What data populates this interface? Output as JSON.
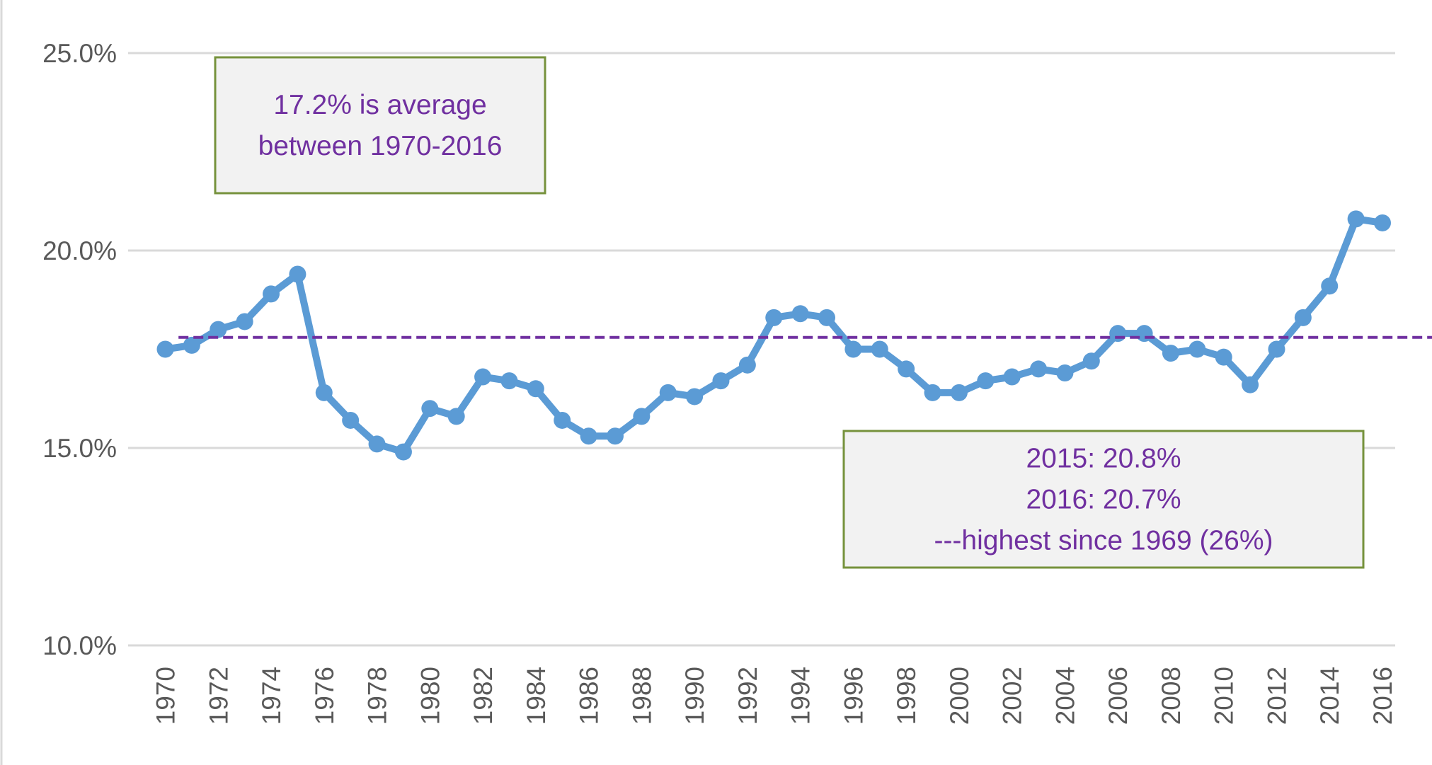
{
  "chart_data": {
    "type": "line",
    "x": [
      1970,
      1971,
      1972,
      1973,
      1974,
      1975,
      1976,
      1977,
      1978,
      1979,
      1980,
      1981,
      1982,
      1983,
      1984,
      1985,
      1986,
      1987,
      1988,
      1989,
      1990,
      1991,
      1992,
      1993,
      1994,
      1995,
      1996,
      1997,
      1998,
      1999,
      2000,
      2001,
      2002,
      2003,
      2004,
      2005,
      2006,
      2007,
      2008,
      2009,
      2010,
      2011,
      2012,
      2013,
      2014,
      2015,
      2016
    ],
    "series": [
      {
        "color": "#5b9bd5",
        "values": [
          17.5,
          17.6,
          18.0,
          18.2,
          18.9,
          19.4,
          16.4,
          15.7,
          15.1,
          14.9,
          16.0,
          15.8,
          16.8,
          16.7,
          16.5,
          15.7,
          15.3,
          15.3,
          15.8,
          16.4,
          16.3,
          16.7,
          17.1,
          18.3,
          18.4,
          18.3,
          17.5,
          17.5,
          17.0,
          16.4,
          16.4,
          16.7,
          16.8,
          17.0,
          16.9,
          17.2,
          17.9,
          17.9,
          17.4,
          17.5,
          17.3,
          16.6,
          17.5,
          18.3,
          19.1,
          20.8,
          20.7
        ]
      }
    ],
    "xlim": [
      1970,
      2016
    ],
    "xticks": [
      1970,
      1972,
      1974,
      1976,
      1978,
      1980,
      1982,
      1984,
      1986,
      1988,
      1990,
      1992,
      1994,
      1996,
      1998,
      2000,
      2002,
      2004,
      2006,
      2008,
      2010,
      2012,
      2014,
      2016
    ],
    "ylim": [
      10,
      25
    ],
    "yticks": [
      {
        "value": 10,
        "label": "10.0%"
      },
      {
        "value": 15,
        "label": "15.0%"
      },
      {
        "value": 20,
        "label": "20.0%"
      },
      {
        "value": 25,
        "label": "25.0%"
      }
    ],
    "grid": true,
    "reference_line": {
      "value": 17.8,
      "color": "#7030a0"
    },
    "annotations": [
      {
        "lines": [
          "17.2% is average",
          "between 1970-2016"
        ]
      },
      {
        "lines": [
          "2015: 20.8%",
          "2016: 20.7%",
          "---highest since 1969 (26%)"
        ]
      }
    ]
  }
}
